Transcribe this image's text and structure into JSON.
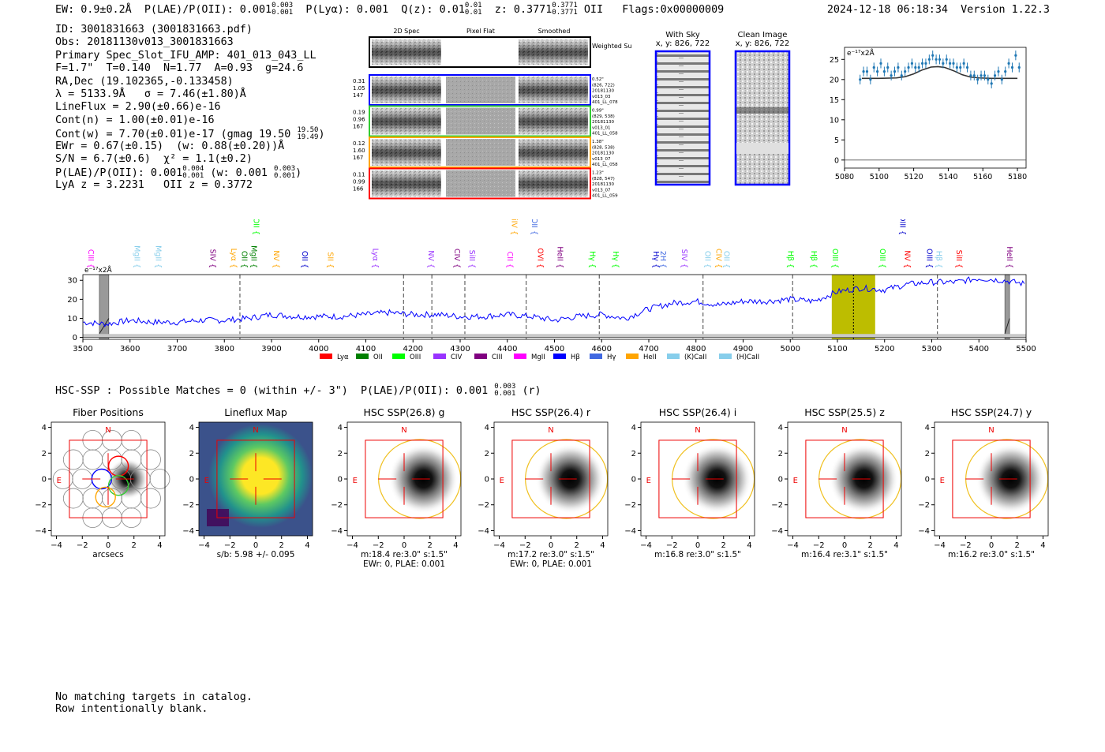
{
  "header": {
    "ew": "EW: 0.9±0.2Å",
    "plae_label": "P(LAE)/P(OII): 0.001",
    "plae_hi": "0.003",
    "plae_lo": "0.001",
    "plya": "P(Lyα): 0.001",
    "qz_label": "Q(z): 0.01",
    "qz_hi": "0.01",
    "qz_lo": "0.01",
    "z_label": "z: 0.3771",
    "z_hi": "0.3771",
    "z_lo": "0.3771",
    "z_line": "OII",
    "flags": "Flags:0x00000009",
    "datetime": "2024-12-18 06:18:34",
    "version": "Version 1.22.3"
  },
  "info_lines": [
    "ID: 3001831663 (3001831663.pdf)",
    "Obs: 20181130v013_3001831663",
    "Primary Spec_Slot_IFU_AMP: 401_013_043_LL",
    "F=1.7\"  T=0.140  N=1.77  A=0.93  g=24.6",
    "RA,Dec (19.102365,-0.133458)",
    "λ = 5133.9Å   σ = 7.46(±1.80)Å",
    "LineFlux = 2.90(±0.66)e-16",
    "Cont(n) = 1.00(±0.01)e-16",
    "Cont(w) = 7.70(±0.01)e-17 (gmag 19.50",
    "EWr = 0.67(±0.15)  (w: 0.88(±0.20))Å",
    "S/N = 6.7(±0.6)  χ² = 1.1(±0.2)",
    "P(LAE)/P(OII): 0.001",
    "LyA z = 3.2231   OII z = 0.3772"
  ],
  "info_extra": {
    "gmag_hi": "19.50",
    "gmag_lo": "19.49",
    "plae_hi": "0.004",
    "plae_lo": "0.001",
    "plae_w": "(w: 0.001",
    "plae_w_hi": "0.003",
    "plae_w_lo": "0.001"
  },
  "cutouts": {
    "col_2d": "2D Spec",
    "col_flat": "Pixel Flat",
    "col_smooth": "Smoothed",
    "weighted_sum": "Weighted Sum",
    "rows": [
      {
        "left": [
          "0.31",
          "1.05",
          "147"
        ],
        "right": [
          "0.52\"",
          "(826, 722)",
          "20181130",
          "v013_03",
          "401_LL_078"
        ],
        "color": "#0000ff"
      },
      {
        "left": [
          "0.19",
          "0.96",
          "167"
        ],
        "right": [
          "0.99\"",
          "(829, 538)",
          "20181130",
          "v013_01",
          "401_LL_058"
        ],
        "color": "#33cc33"
      },
      {
        "left": [
          "0.12",
          "1.60",
          "167"
        ],
        "right": [
          "1.38\"",
          "(828, 538)",
          "20181130",
          "v013_07",
          "401_LL_058"
        ],
        "color": "#ffa500"
      },
      {
        "left": [
          "0.11",
          "0.99",
          "166"
        ],
        "right": [
          "1.23\"",
          "(828, 547)",
          "20181130",
          "v013_07",
          "401_LL_059"
        ],
        "color": "#ff0000"
      }
    ],
    "with_sky_title": "With Sky",
    "with_sky_xy": "x, y: 826, 722",
    "clean_title": "Clean Image",
    "clean_xy": "x, y: 826, 722"
  },
  "hsc": {
    "text": "HSC-SSP : Possible Matches = 0 (within +/- 3\")  P(LAE)/P(OII): 0.001",
    "hi": "0.003",
    "lo": "0.001",
    "band": "(r)"
  },
  "panels": [
    {
      "title": "Fiber Positions",
      "sub1": "arcsecs",
      "sub2": ""
    },
    {
      "title": "Lineflux Map",
      "sub1": "s/b: 5.98 +/- 0.095",
      "sub2": ""
    },
    {
      "title": "HSC SSP(26.8) g",
      "sub1": "m:18.4  re:3.0\"  s:1.5\"",
      "sub2": "EWr: 0, PLAE: 0.001"
    },
    {
      "title": "HSC SSP(26.4) r",
      "sub1": "m:17.2  re:3.0\"  s:1.5\"",
      "sub2": "EWr: 0, PLAE: 0.001"
    },
    {
      "title": "HSC SSP(26.4) i",
      "sub1": "m:16.8  re:3.0\"  s:1.5\"",
      "sub2": ""
    },
    {
      "title": "HSC SSP(25.5) z",
      "sub1": "m:16.4  re:3.1\"  s:1.5\"",
      "sub2": ""
    },
    {
      "title": "HSC SSP(24.7) y",
      "sub1": "m:16.2  re:3.0\"  s:1.5\"",
      "sub2": ""
    }
  ],
  "panel_axis": {
    "ticks": [
      "−4",
      "−2",
      "0",
      "2",
      "4"
    ],
    "north": "N",
    "east": "E"
  },
  "footer": [
    "No matching targets in catalog.",
    "Row intentionally blank."
  ],
  "chart_data": [
    {
      "type": "line",
      "title": "",
      "ylabel": "e⁻¹⁷x2Å",
      "xlim": [
        5080,
        5185
      ],
      "ylim": [
        -2,
        28
      ],
      "xticks": [
        5080,
        5100,
        5120,
        5140,
        5160,
        5180
      ],
      "yticks": [
        0,
        5,
        10,
        15,
        20,
        25
      ],
      "series": [
        {
          "name": "data",
          "color": "#1f77b4",
          "x": [
            5089,
            5091,
            5093,
            5095,
            5097,
            5099,
            5101,
            5103,
            5105,
            5107,
            5109,
            5111,
            5113,
            5115,
            5117,
            5119,
            5121,
            5123,
            5125,
            5127,
            5129,
            5131,
            5133,
            5135,
            5137,
            5139,
            5141,
            5143,
            5145,
            5147,
            5149,
            5151,
            5153,
            5155,
            5157,
            5159,
            5161,
            5163,
            5165,
            5167,
            5169,
            5171,
            5173,
            5175,
            5177,
            5179,
            5181
          ],
          "y": [
            20,
            22,
            22,
            20,
            23,
            22,
            24,
            22,
            23,
            21,
            22,
            23,
            21,
            22,
            23,
            24,
            23,
            23,
            24,
            24,
            25,
            26,
            25,
            25,
            24,
            25,
            24,
            24,
            23,
            23,
            24,
            23,
            21,
            21,
            20,
            21,
            21,
            20,
            19,
            21,
            22,
            20,
            22,
            24,
            23,
            26,
            23
          ]
        },
        {
          "name": "fit",
          "color": "#333333",
          "x": [
            5090,
            5100,
            5110,
            5115,
            5120,
            5125,
            5130,
            5134,
            5138,
            5143,
            5148,
            5153,
            5158,
            5165,
            5170,
            5180
          ],
          "y": [
            20.3,
            20.3,
            20.4,
            20.7,
            21.4,
            22.4,
            23.1,
            23.2,
            23.0,
            22.2,
            21.2,
            20.6,
            20.4,
            20.3,
            20.3,
            20.3
          ]
        }
      ]
    },
    {
      "type": "line",
      "title": "",
      "ylabel": "e⁻¹⁷x2Å",
      "xlim": [
        3500,
        5500
      ],
      "ylim": [
        -1,
        33
      ],
      "xticks": [
        3500,
        3600,
        3700,
        3800,
        3900,
        4000,
        4100,
        4200,
        4300,
        4400,
        4500,
        4600,
        4700,
        4800,
        4900,
        5000,
        5100,
        5200,
        5300,
        5400,
        5500
      ],
      "yticks": [
        0,
        10,
        20,
        30
      ],
      "highlight_band": [
        5088,
        5180
      ],
      "highlight_center": 5134,
      "gray_bands": [
        [
          3535,
          3555
        ],
        [
          5455,
          5465
        ]
      ],
      "dashed_lines": [
        3833,
        4180,
        4240,
        4310,
        4440,
        4595,
        4815,
        5005,
        5312
      ],
      "series": [
        {
          "name": "spectrum",
          "color": "#0000ff",
          "x": [
            3500,
            3550,
            3600,
            3650,
            3700,
            3750,
            3800,
            3850,
            3900,
            3950,
            4000,
            4050,
            4100,
            4150,
            4200,
            4250,
            4300,
            4350,
            4400,
            4450,
            4500,
            4550,
            4600,
            4650,
            4700,
            4750,
            4800,
            4850,
            4900,
            4950,
            5000,
            5050,
            5100,
            5150,
            5200,
            5250,
            5300,
            5350,
            5400,
            5450,
            5500
          ],
          "y": [
            8,
            7,
            9,
            8,
            8,
            9,
            9,
            10,
            12,
            11,
            11,
            11,
            12,
            13,
            12,
            12,
            11,
            11,
            12,
            11,
            9,
            11,
            12,
            10,
            15,
            18,
            19,
            17,
            19,
            19,
            20,
            19,
            24,
            26,
            25,
            28,
            29,
            29,
            31,
            30,
            28
          ]
        },
        {
          "name": "noise",
          "color": "#aaaaaa",
          "x": [
            3500,
            5500
          ],
          "y": [
            1,
            1
          ]
        }
      ],
      "legend": [
        "Lyα",
        "OII",
        "OIII",
        "CIV",
        "CIII",
        "MgII",
        "Hβ",
        "Hγ",
        "HeII",
        "(K)CaII",
        "(H)CaII"
      ],
      "legend_colors": [
        "#ff0000",
        "#008000",
        "#00ff00",
        "#9933ff",
        "#800080",
        "#ff00ff",
        "#0000ff",
        "#4169e1",
        "#ffa500",
        "#87ceeb",
        "#87ceeb"
      ],
      "line_labels": [
        {
          "name": "CIII",
          "x": 3507,
          "color": "#ff00ff",
          "row": 0
        },
        {
          "name": "MgII",
          "x": 3605,
          "color": "#87ceeb",
          "row": 0
        },
        {
          "name": "MgII",
          "x": 3650,
          "color": "#87ceeb",
          "row": 0
        },
        {
          "name": "SIV",
          "x": 3765,
          "color": "#800080",
          "row": 0
        },
        {
          "name": "Lyα",
          "x": 3810,
          "color": "#ffa500",
          "row": 0
        },
        {
          "name": "OII",
          "x": 3832,
          "color": "#008000",
          "row": 0
        },
        {
          "name": "MgII",
          "x": 3852,
          "color": "#008000",
          "row": 0
        },
        {
          "name": "NV",
          "x": 3900,
          "color": "#ffa500",
          "row": 0
        },
        {
          "name": "OII",
          "x": 3960,
          "color": "#0000cc",
          "row": 0
        },
        {
          "name": "SII",
          "x": 4015,
          "color": "#ffa500",
          "row": 0
        },
        {
          "name": "Lyα",
          "x": 4110,
          "color": "#9933ff",
          "row": 0
        },
        {
          "name": "NV",
          "x": 4228,
          "color": "#9933ff",
          "row": 0
        },
        {
          "name": "CIV",
          "x": 4283,
          "color": "#800080",
          "row": 0
        },
        {
          "name": "SiII",
          "x": 4315,
          "color": "#9933ff",
          "row": 0
        },
        {
          "name": "CII",
          "x": 4395,
          "color": "#ff00ff",
          "row": 0
        },
        {
          "name": "OVI",
          "x": 4460,
          "color": "#ff0000",
          "row": 0
        },
        {
          "name": "HeII",
          "x": 4502,
          "color": "#800080",
          "row": 0
        },
        {
          "name": "Hγ",
          "x": 4570,
          "color": "#00ff00",
          "row": 0
        },
        {
          "name": "Hγ",
          "x": 4620,
          "color": "#00ff00",
          "row": 0
        },
        {
          "name": "Hγ",
          "x": 4705,
          "color": "#0000cc",
          "row": 0
        },
        {
          "name": "2H",
          "x": 4720,
          "color": "#4169e1",
          "row": 0
        },
        {
          "name": "SIV",
          "x": 4765,
          "color": "#9933ff",
          "row": 0
        },
        {
          "name": "OII",
          "x": 4815,
          "color": "#87ceeb",
          "row": 0
        },
        {
          "name": "CIV",
          "x": 4838,
          "color": "#ffa500",
          "row": 0
        },
        {
          "name": "OII",
          "x": 4855,
          "color": "#87ceeb",
          "row": 0
        },
        {
          "name": "Hβ",
          "x": 4990,
          "color": "#00ff00",
          "row": 0
        },
        {
          "name": "Hβ",
          "x": 5040,
          "color": "#00ff00",
          "row": 0
        },
        {
          "name": "OIII",
          "x": 5085,
          "color": "#00ff00",
          "row": 0
        },
        {
          "name": "OIII",
          "x": 5185,
          "color": "#00ff00",
          "row": 0
        },
        {
          "name": "NV",
          "x": 5238,
          "color": "#ff0000",
          "row": 0
        },
        {
          "name": "OIII",
          "x": 5285,
          "color": "#0000cc",
          "row": 0
        },
        {
          "name": "Hβ",
          "x": 5305,
          "color": "#87ceeb",
          "row": 0
        },
        {
          "name": "SiII",
          "x": 5348,
          "color": "#ff0000",
          "row": 0
        },
        {
          "name": "HeII",
          "x": 5455,
          "color": "#800080",
          "row": 0
        },
        {
          "name": "OII",
          "x": 3857,
          "color": "#00ff00",
          "row": 1
        },
        {
          "name": "SiIV",
          "x": 4405,
          "color": "#ffa500",
          "row": 1
        },
        {
          "name": "OII",
          "x": 4447,
          "color": "#4169e1",
          "row": 1
        },
        {
          "name": "OIII",
          "x": 5228,
          "color": "#0000cc",
          "row": 1
        }
      ]
    }
  ]
}
